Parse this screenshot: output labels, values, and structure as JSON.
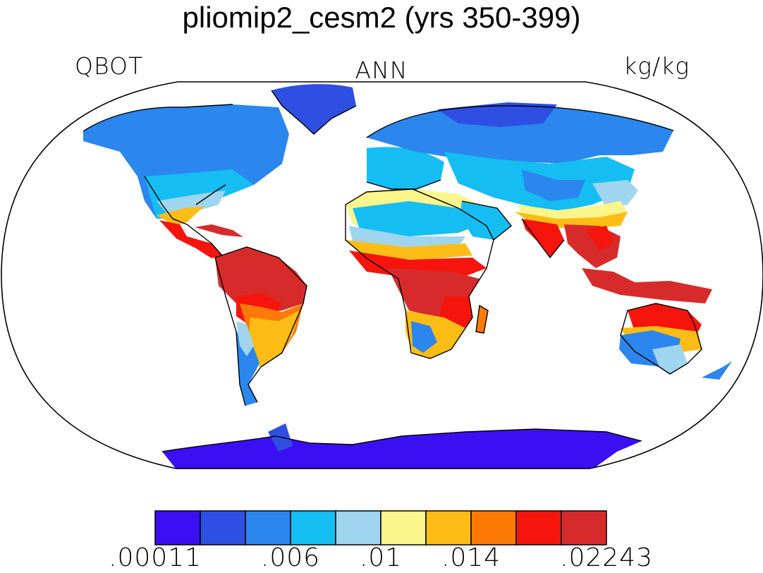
{
  "title": "pliomip2_cesm2 (yrs 350-399)",
  "left_label": "QBOT",
  "center_label": "ANN",
  "right_label": "kg/kg",
  "colorbar": {
    "colors": [
      "#3a10f2",
      "#2f4fe3",
      "#2b86ee",
      "#15bdf2",
      "#9fd5ee",
      "#fbf58c",
      "#fdbd16",
      "#fd7a08",
      "#f5150d",
      "#d72b2b"
    ],
    "tick_labels": [
      ".00011",
      ".006",
      ".01",
      ".014",
      ".02243"
    ]
  }
}
